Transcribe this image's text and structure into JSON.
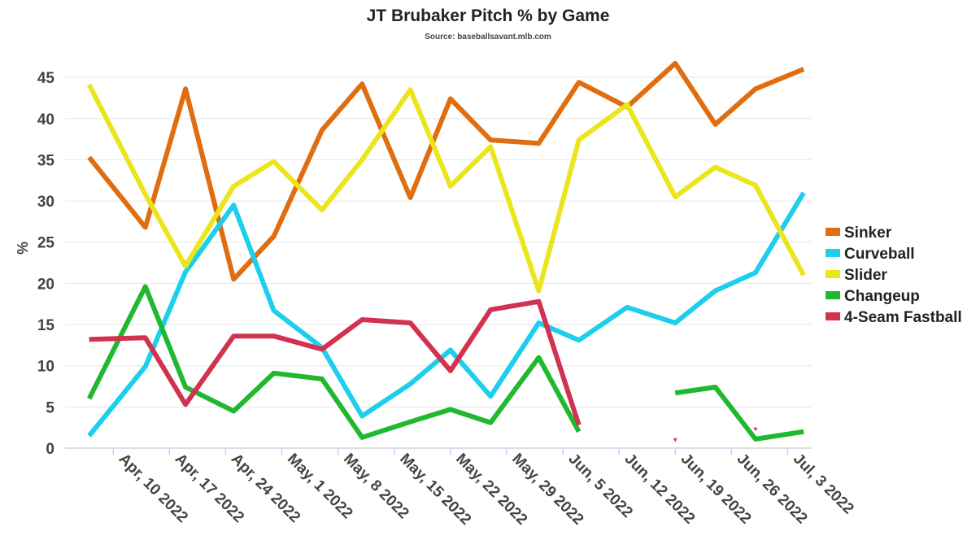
{
  "title": "JT Brubaker Pitch % by Game",
  "subtitle": "Source: baseballsavant.mlb.com",
  "chart_data": {
    "type": "line",
    "title": "JT Brubaker Pitch % by Game",
    "subtitle": "Source: baseballsavant.mlb.com",
    "xlabel": "",
    "ylabel": "%",
    "x_type": "date",
    "xlim": [
      "2022-04-04",
      "2022-07-06"
    ],
    "ylim": [
      0,
      46
    ],
    "y_ticks": [
      0,
      5,
      10,
      15,
      20,
      25,
      30,
      35,
      40,
      45
    ],
    "x_ticks": [
      "2022-04-10",
      "2022-04-17",
      "2022-04-24",
      "2022-05-01",
      "2022-05-08",
      "2022-05-15",
      "2022-05-22",
      "2022-05-29",
      "2022-06-05",
      "2022-06-12",
      "2022-06-19",
      "2022-06-26",
      "2022-07-03"
    ],
    "x_tick_labels": [
      "Apr, 10 2022",
      "Apr, 17 2022",
      "Apr, 24 2022",
      "May, 1 2022",
      "May, 8 2022",
      "May, 15 2022",
      "May, 22 2022",
      "May, 29 2022",
      "Jun, 5 2022",
      "Jun, 12 2022",
      "Jun, 19 2022",
      "Jun, 26 2022",
      "Jul, 3 2022"
    ],
    "grid": true,
    "legend_position": "right",
    "x": [
      "2022-04-07",
      "2022-04-14",
      "2022-04-19",
      "2022-04-25",
      "2022-04-30",
      "2022-05-06",
      "2022-05-11",
      "2022-05-17",
      "2022-05-22",
      "2022-05-27",
      "2022-06-02",
      "2022-06-07",
      "2022-06-13",
      "2022-06-19",
      "2022-06-24",
      "2022-06-29",
      "2022-07-05"
    ],
    "series": [
      {
        "name": "Sinker",
        "color": "#e06d10",
        "values": [
          35.3,
          26.8,
          43.6,
          20.5,
          25.7,
          38.6,
          44.2,
          30.4,
          42.4,
          37.4,
          37.0,
          44.4,
          41.4,
          46.7,
          39.3,
          43.6,
          46.0
        ]
      },
      {
        "name": "Curveball",
        "color": "#1ccfec",
        "values": [
          1.5,
          9.9,
          21.4,
          29.5,
          16.7,
          12.2,
          3.9,
          7.8,
          11.9,
          6.3,
          15.2,
          13.1,
          17.1,
          15.2,
          19.1,
          21.3,
          31.0
        ]
      },
      {
        "name": "Slider",
        "color": "#ebe51c",
        "values": [
          44.1,
          30.8,
          22.1,
          31.8,
          34.8,
          28.9,
          35.0,
          43.5,
          31.8,
          36.6,
          19.1,
          37.4,
          41.7,
          30.5,
          34.1,
          31.9,
          21.0
        ]
      },
      {
        "name": "Changeup",
        "color": "#20b82f",
        "values": [
          6.0,
          19.6,
          7.4,
          4.5,
          9.1,
          8.4,
          1.3,
          3.2,
          4.7,
          3.1,
          11.0,
          2.0,
          null,
          6.7,
          7.4,
          1.1,
          2.0
        ]
      },
      {
        "name": "4-Seam Fastball",
        "color": "#d1324f",
        "values": [
          13.2,
          13.4,
          5.3,
          13.6,
          13.6,
          12.0,
          15.6,
          15.2,
          9.4,
          16.8,
          17.8,
          2.8,
          null,
          1.0,
          null,
          2.3,
          null
        ]
      }
    ]
  }
}
